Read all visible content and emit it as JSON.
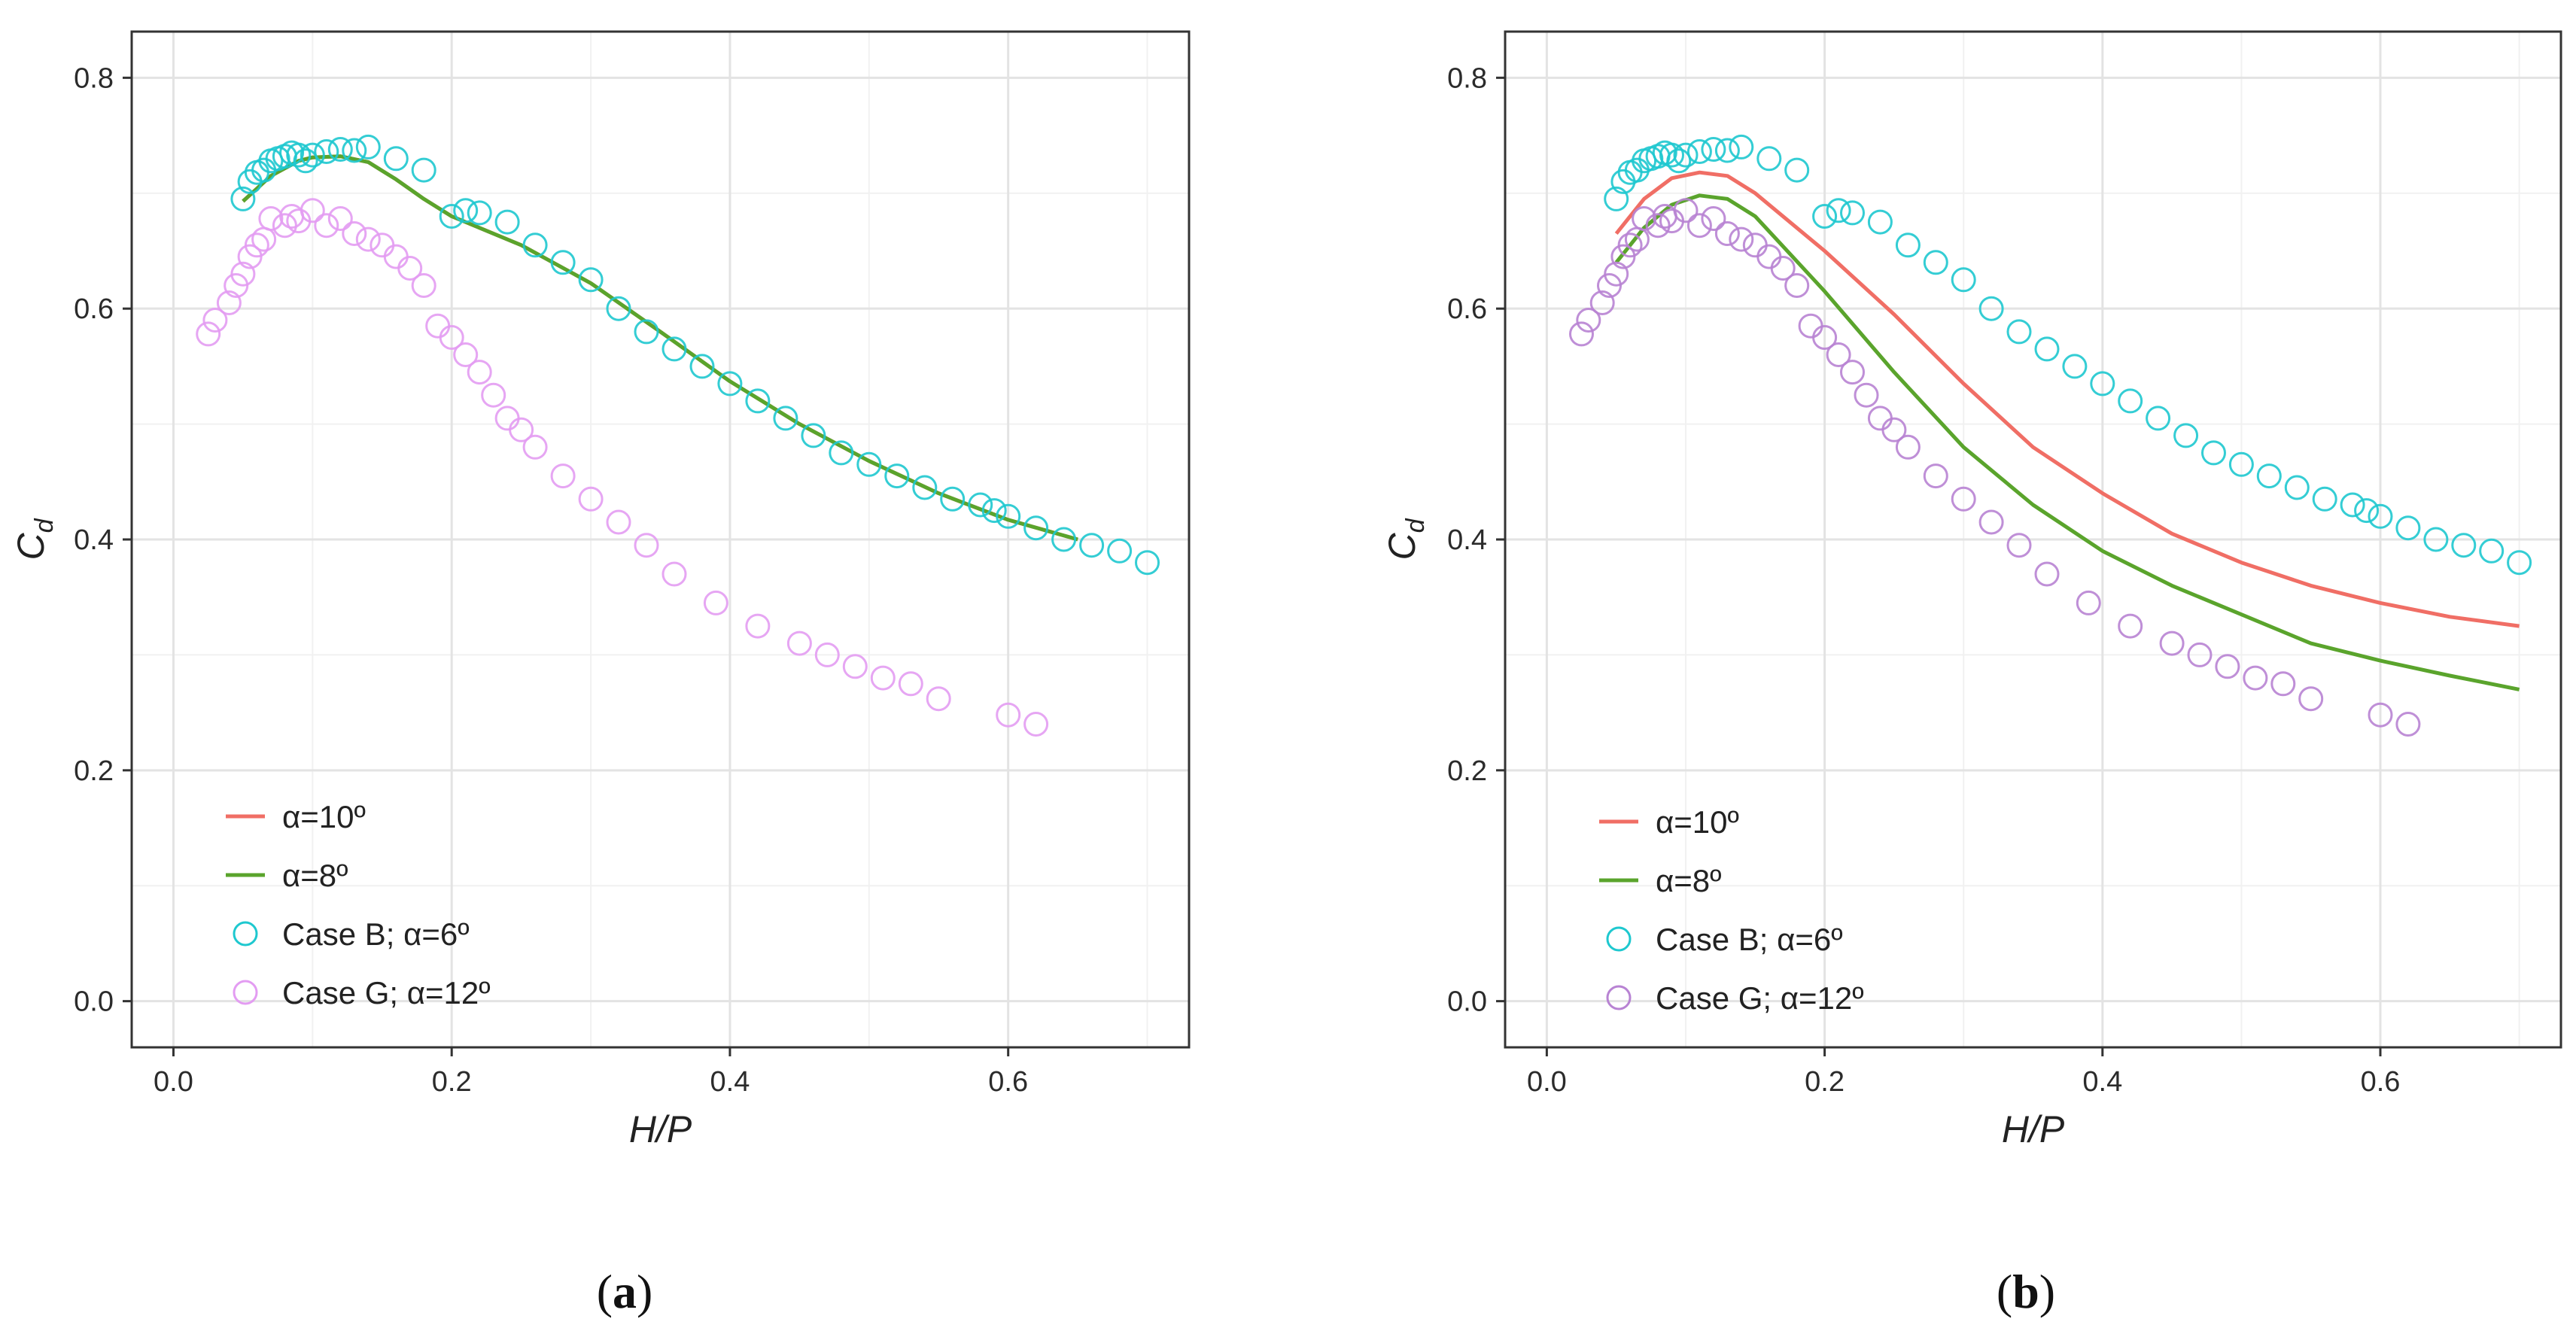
{
  "chart_data": [
    {
      "type": "scatter",
      "panel_label": "a",
      "xlabel": "H/P",
      "ylabel_main": "C",
      "ylabel_sub": "d",
      "xlim": [
        -0.03,
        0.73
      ],
      "ylim": [
        -0.04,
        0.84
      ],
      "xticks": [
        0.0,
        0.2,
        0.4,
        0.6
      ],
      "xtick_labels": [
        "0.0",
        "0.2",
        "0.4",
        "0.6"
      ],
      "yticks": [
        0.0,
        0.2,
        0.4,
        0.6,
        0.8
      ],
      "ytick_labels": [
        "0.0",
        "0.2",
        "0.4",
        "0.6",
        "0.8"
      ],
      "grid": true,
      "legend_position": "bottom-left",
      "lines": [
        {
          "name": "α=10º",
          "color": "#f06e65",
          "x": [
            0.05,
            0.07,
            0.09,
            0.1,
            0.12,
            0.14,
            0.16,
            0.18,
            0.2,
            0.25,
            0.3,
            0.35,
            0.4,
            0.45,
            0.5,
            0.55,
            0.6,
            0.65
          ],
          "y": [
            0.693,
            0.715,
            0.728,
            0.731,
            0.732,
            0.727,
            0.712,
            0.695,
            0.68,
            0.655,
            0.622,
            0.58,
            0.537,
            0.5,
            0.468,
            0.44,
            0.417,
            0.4
          ]
        },
        {
          "name": "α=8º",
          "color": "#5aa42c",
          "x": [
            0.05,
            0.07,
            0.09,
            0.1,
            0.12,
            0.14,
            0.16,
            0.18,
            0.2,
            0.25,
            0.3,
            0.35,
            0.4,
            0.45,
            0.5,
            0.55,
            0.6,
            0.65
          ],
          "y": [
            0.693,
            0.715,
            0.728,
            0.731,
            0.732,
            0.727,
            0.712,
            0.695,
            0.68,
            0.655,
            0.622,
            0.58,
            0.537,
            0.5,
            0.468,
            0.44,
            0.417,
            0.4
          ]
        }
      ],
      "points": [
        {
          "name": "Case B; α=6º",
          "color": "#1ec8cf",
          "x": [
            0.05,
            0.055,
            0.06,
            0.065,
            0.07,
            0.075,
            0.08,
            0.085,
            0.09,
            0.095,
            0.1,
            0.11,
            0.12,
            0.13,
            0.14,
            0.16,
            0.18,
            0.2,
            0.21,
            0.22,
            0.24,
            0.26,
            0.28,
            0.3,
            0.32,
            0.34,
            0.36,
            0.38,
            0.4,
            0.42,
            0.44,
            0.46,
            0.48,
            0.5,
            0.52,
            0.54,
            0.56,
            0.58,
            0.59,
            0.6,
            0.62,
            0.64,
            0.66,
            0.68,
            0.7
          ],
          "y": [
            0.695,
            0.71,
            0.718,
            0.72,
            0.728,
            0.73,
            0.732,
            0.735,
            0.733,
            0.728,
            0.733,
            0.736,
            0.738,
            0.737,
            0.74,
            0.73,
            0.72,
            0.68,
            0.685,
            0.683,
            0.675,
            0.655,
            0.64,
            0.625,
            0.6,
            0.58,
            0.565,
            0.55,
            0.535,
            0.52,
            0.505,
            0.49,
            0.475,
            0.465,
            0.455,
            0.445,
            0.435,
            0.43,
            0.425,
            0.42,
            0.41,
            0.4,
            0.395,
            0.39,
            0.38
          ]
        },
        {
          "name": "Case G; α=12º",
          "color": "#e39cf2",
          "x": [
            0.025,
            0.03,
            0.04,
            0.045,
            0.05,
            0.055,
            0.06,
            0.065,
            0.07,
            0.08,
            0.085,
            0.09,
            0.1,
            0.11,
            0.12,
            0.13,
            0.14,
            0.15,
            0.16,
            0.17,
            0.18,
            0.19,
            0.2,
            0.21,
            0.22,
            0.23,
            0.24,
            0.25,
            0.26,
            0.28,
            0.3,
            0.32,
            0.34,
            0.36,
            0.39,
            0.42,
            0.45,
            0.47,
            0.49,
            0.51,
            0.53,
            0.55,
            0.6,
            0.62
          ],
          "y": [
            0.578,
            0.59,
            0.605,
            0.62,
            0.63,
            0.645,
            0.655,
            0.66,
            0.678,
            0.672,
            0.68,
            0.676,
            0.685,
            0.672,
            0.678,
            0.665,
            0.66,
            0.655,
            0.645,
            0.635,
            0.62,
            0.585,
            0.575,
            0.56,
            0.545,
            0.525,
            0.505,
            0.495,
            0.48,
            0.455,
            0.435,
            0.415,
            0.395,
            0.37,
            0.345,
            0.325,
            0.31,
            0.3,
            0.29,
            0.28,
            0.275,
            0.262,
            0.248,
            0.24
          ]
        }
      ],
      "legend": [
        {
          "label": "α=10º",
          "kind": "line",
          "color": "#f06e65"
        },
        {
          "label": "α=8º",
          "kind": "line",
          "color": "#5aa42c"
        },
        {
          "label": "Case B; α=6º",
          "kind": "circle",
          "color": "#1ec8cf"
        },
        {
          "label": "Case G; α=12º",
          "kind": "circle",
          "color": "#e39cf2"
        }
      ]
    },
    {
      "type": "scatter",
      "panel_label": "b",
      "xlabel": "H/P",
      "ylabel_main": "C",
      "ylabel_sub": "d",
      "xlim": [
        -0.03,
        0.73
      ],
      "ylim": [
        -0.04,
        0.84
      ],
      "xticks": [
        0.0,
        0.2,
        0.4,
        0.6
      ],
      "xtick_labels": [
        "0.0",
        "0.2",
        "0.4",
        "0.6"
      ],
      "yticks": [
        0.0,
        0.2,
        0.4,
        0.6,
        0.8
      ],
      "ytick_labels": [
        "0.0",
        "0.2",
        "0.4",
        "0.6",
        "0.8"
      ],
      "grid": true,
      "legend_position": "bottom-left",
      "lines": [
        {
          "name": "α=10º",
          "color": "#f06e65",
          "x": [
            0.05,
            0.07,
            0.09,
            0.11,
            0.13,
            0.15,
            0.2,
            0.25,
            0.3,
            0.35,
            0.4,
            0.45,
            0.5,
            0.55,
            0.6,
            0.65,
            0.7
          ],
          "y": [
            0.665,
            0.695,
            0.713,
            0.718,
            0.715,
            0.7,
            0.65,
            0.595,
            0.535,
            0.48,
            0.44,
            0.405,
            0.38,
            0.36,
            0.345,
            0.333,
            0.325
          ]
        },
        {
          "name": "α=8º",
          "color": "#5aa42c",
          "x": [
            0.05,
            0.07,
            0.09,
            0.11,
            0.13,
            0.15,
            0.2,
            0.25,
            0.3,
            0.35,
            0.4,
            0.45,
            0.5,
            0.55,
            0.6,
            0.65,
            0.7
          ],
          "y": [
            0.64,
            0.67,
            0.69,
            0.698,
            0.695,
            0.68,
            0.615,
            0.545,
            0.48,
            0.43,
            0.39,
            0.36,
            0.335,
            0.31,
            0.295,
            0.282,
            0.27
          ]
        }
      ],
      "points": [
        {
          "name": "Case B; α=6º",
          "color": "#1ec8cf",
          "x": [
            0.05,
            0.055,
            0.06,
            0.065,
            0.07,
            0.075,
            0.08,
            0.085,
            0.09,
            0.095,
            0.1,
            0.11,
            0.12,
            0.13,
            0.14,
            0.16,
            0.18,
            0.2,
            0.21,
            0.22,
            0.24,
            0.26,
            0.28,
            0.3,
            0.32,
            0.34,
            0.36,
            0.38,
            0.4,
            0.42,
            0.44,
            0.46,
            0.48,
            0.5,
            0.52,
            0.54,
            0.56,
            0.58,
            0.59,
            0.6,
            0.62,
            0.64,
            0.66,
            0.68,
            0.7
          ],
          "y": [
            0.695,
            0.71,
            0.718,
            0.72,
            0.728,
            0.73,
            0.732,
            0.735,
            0.733,
            0.728,
            0.733,
            0.736,
            0.738,
            0.737,
            0.74,
            0.73,
            0.72,
            0.68,
            0.685,
            0.683,
            0.675,
            0.655,
            0.64,
            0.625,
            0.6,
            0.58,
            0.565,
            0.55,
            0.535,
            0.52,
            0.505,
            0.49,
            0.475,
            0.465,
            0.455,
            0.445,
            0.435,
            0.43,
            0.425,
            0.42,
            0.41,
            0.4,
            0.395,
            0.39,
            0.38
          ]
        },
        {
          "name": "Case G; α=12º",
          "color": "#b883d3",
          "x": [
            0.025,
            0.03,
            0.04,
            0.045,
            0.05,
            0.055,
            0.06,
            0.065,
            0.07,
            0.08,
            0.085,
            0.09,
            0.1,
            0.11,
            0.12,
            0.13,
            0.14,
            0.15,
            0.16,
            0.17,
            0.18,
            0.19,
            0.2,
            0.21,
            0.22,
            0.23,
            0.24,
            0.25,
            0.26,
            0.28,
            0.3,
            0.32,
            0.34,
            0.36,
            0.39,
            0.42,
            0.45,
            0.47,
            0.49,
            0.51,
            0.53,
            0.55,
            0.6,
            0.62
          ],
          "y": [
            0.578,
            0.59,
            0.605,
            0.62,
            0.63,
            0.645,
            0.655,
            0.66,
            0.678,
            0.672,
            0.68,
            0.676,
            0.685,
            0.672,
            0.678,
            0.665,
            0.66,
            0.655,
            0.645,
            0.635,
            0.62,
            0.585,
            0.575,
            0.56,
            0.545,
            0.525,
            0.505,
            0.495,
            0.48,
            0.455,
            0.435,
            0.415,
            0.395,
            0.37,
            0.345,
            0.325,
            0.31,
            0.3,
            0.29,
            0.28,
            0.275,
            0.262,
            0.248,
            0.24
          ]
        }
      ],
      "legend": [
        {
          "label": "α=10º",
          "kind": "line",
          "color": "#f06e65"
        },
        {
          "label": "α=8º",
          "kind": "line",
          "color": "#5aa42c"
        },
        {
          "label": "Case B; α=6º",
          "kind": "circle",
          "color": "#1ec8cf"
        },
        {
          "label": "Case G; α=12º",
          "kind": "circle",
          "color": "#b883d3"
        }
      ]
    }
  ]
}
